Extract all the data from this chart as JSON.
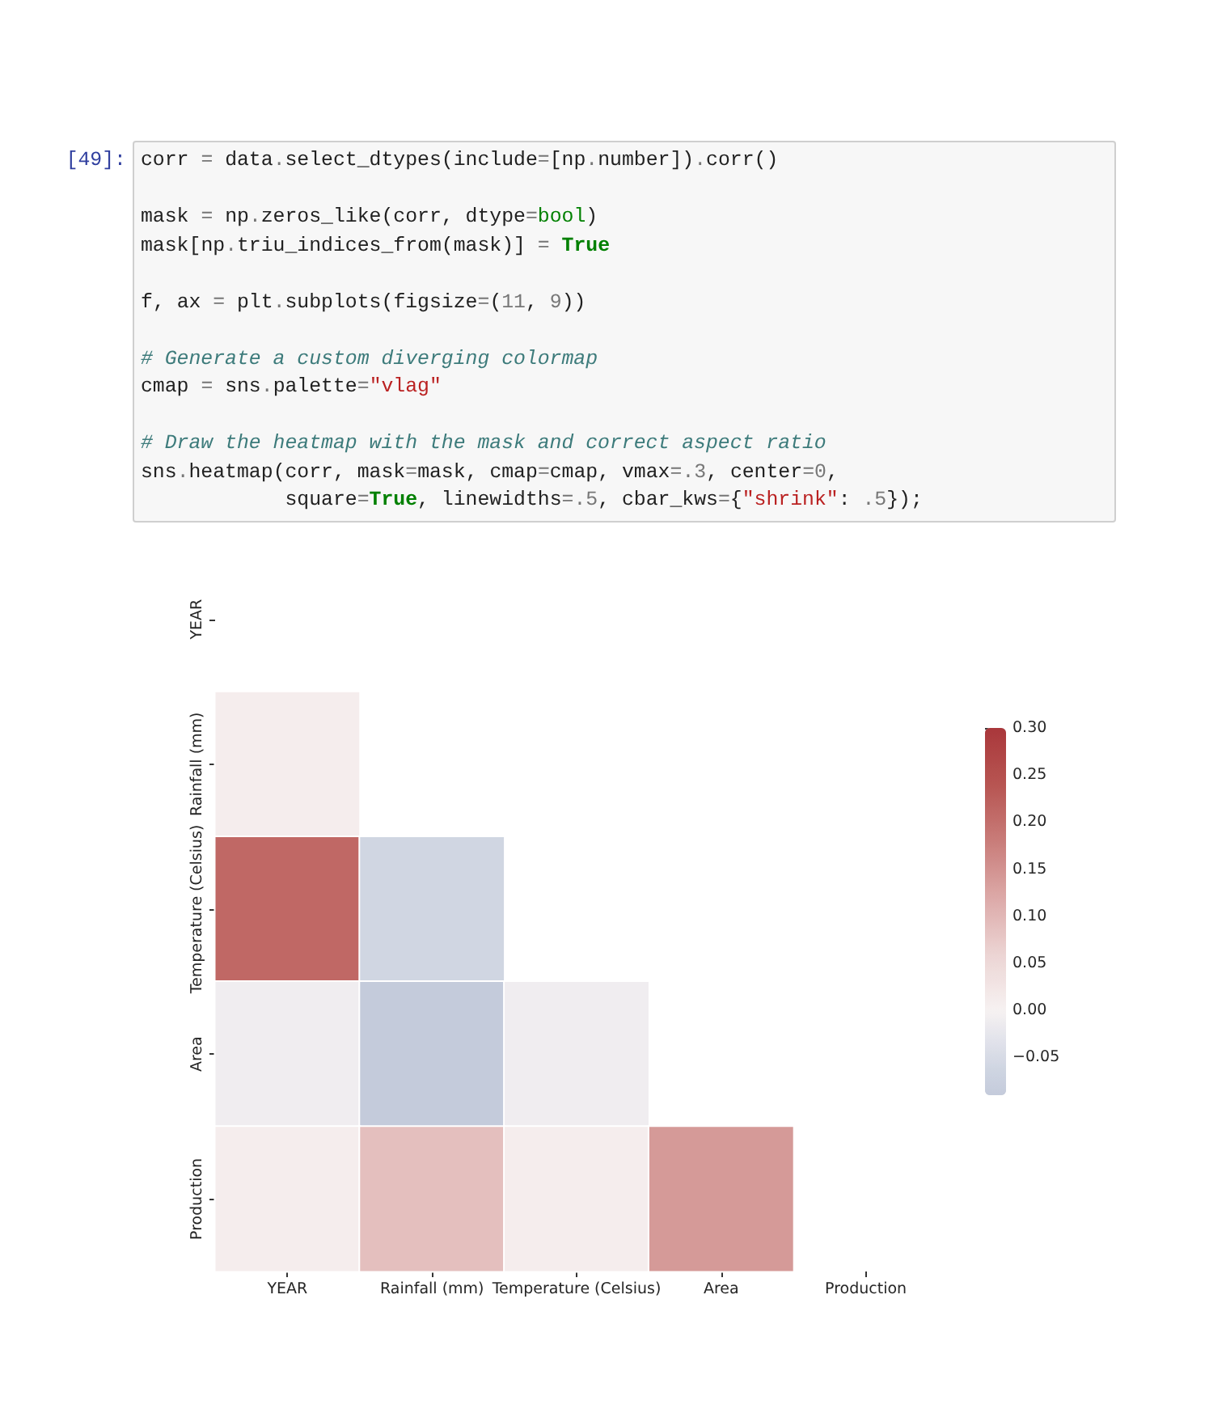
{
  "chart_data": {
    "type": "heatmap",
    "annotations": [
      "[49]:",
      "corr = data.select_dtypes(include=[np.number]).corr()\n\nmask = np.zeros_like(corr, dtype=bool)\nmask[np.triu_indices_from(mask)] = True\n\nf, ax = plt.subplots(figsize=(11, 9))\n\n# Generate a custom diverging colormap\ncmap = sns.palette=\"vlag\"\n\n# Draw the heatmap with the mask and correct aspect ratio\nsns.heatmap(corr, mask=mask, cmap=cmap, vmax=.3, center=0,\n            square=True, linewidths=.5, cbar_kws={\"shrink\": .5});"
    ],
    "categories": [
      "YEAR",
      "Rainfall (mm)",
      "Temperature (Celsius)",
      "Area",
      "Production"
    ],
    "y_categories": [
      "YEAR",
      "Rainfall (mm)",
      "Temperature (Celsius)",
      "Area",
      "Production"
    ],
    "cells": [
      [
        null,
        null,
        null,
        null,
        null
      ],
      [
        0.01,
        null,
        null,
        null,
        null
      ],
      [
        0.21,
        -0.06,
        null,
        null,
        null
      ],
      [
        -0.01,
        -0.09,
        -0.01,
        null,
        null
      ],
      [
        0.01,
        0.09,
        0.01,
        0.14,
        null
      ]
    ],
    "clim": [
      -0.09,
      0.3
    ],
    "cticks": [
      {
        "value": -0.05,
        "label": "−0.05"
      },
      {
        "value": 0,
        "label": "0.00"
      },
      {
        "value": 0.05,
        "label": "0.05"
      },
      {
        "value": 0.1,
        "label": "0.10"
      },
      {
        "value": 0.15,
        "label": "0.15"
      },
      {
        "value": 0.2,
        "label": "0.20"
      },
      {
        "value": 0.25,
        "label": "0.25"
      },
      {
        "value": 0.3,
        "label": "0.30"
      }
    ]
  }
}
